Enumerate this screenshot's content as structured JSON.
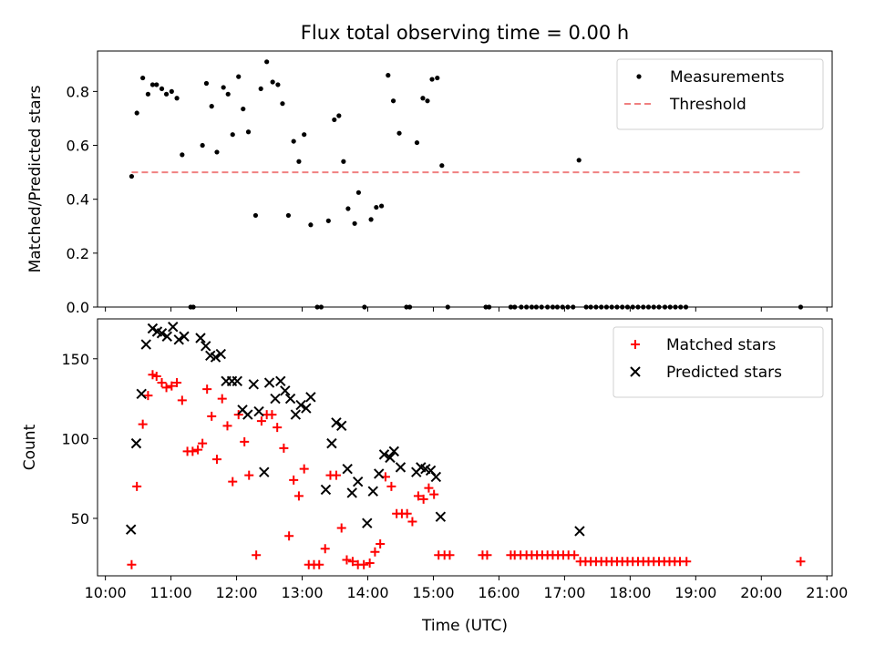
{
  "figure": {
    "title": "Flux total observing time = 0.00 h",
    "xlabel": "Time (UTC)"
  },
  "colors": {
    "measurements": "#000000",
    "threshold": "#f08080",
    "matched": "#ff0000",
    "predicted": "#000000"
  },
  "chart_data": [
    {
      "type": "scatter",
      "ylabel": "Matched/Predicted stars",
      "xlim": [
        9.88,
        21.08
      ],
      "ylim": [
        0,
        0.95
      ],
      "xticks": [
        "10:00",
        "11:00",
        "12:00",
        "13:00",
        "14:00",
        "15:00",
        "16:00",
        "17:00",
        "18:00",
        "19:00",
        "20:00",
        "21:00"
      ],
      "yticks": [
        "0.0",
        "0.2",
        "0.4",
        "0.6",
        "0.8"
      ],
      "legend_position": "top-right",
      "series": [
        {
          "name": "Measurements",
          "marker": "dot",
          "x": [
            10.4,
            10.48,
            10.57,
            10.65,
            10.72,
            10.78,
            10.86,
            10.93,
            11.01,
            11.09,
            11.17,
            11.3,
            11.34,
            11.48,
            11.54,
            11.62,
            11.7,
            11.8,
            11.87,
            11.94,
            12.03,
            12.1,
            12.18,
            12.29,
            12.37,
            12.46,
            12.55,
            12.63,
            12.7,
            12.79,
            12.87,
            12.95,
            13.03,
            13.13,
            13.23,
            13.29,
            13.4,
            13.49,
            13.56,
            13.63,
            13.7,
            13.8,
            13.86,
            13.95,
            14.05,
            14.13,
            14.21,
            14.31,
            14.39,
            14.48,
            14.59,
            14.64,
            14.75,
            14.84,
            14.91,
            14.98,
            15.06,
            15.13,
            15.22,
            15.8,
            15.85,
            16.18,
            16.24,
            16.34,
            16.42,
            16.5,
            16.57,
            16.65,
            16.74,
            16.82,
            16.89,
            16.97,
            17.05,
            17.13,
            17.22,
            17.33,
            17.4,
            17.48,
            17.56,
            17.64,
            17.72,
            17.8,
            17.88,
            17.96,
            18.04,
            18.12,
            18.2,
            18.28,
            18.36,
            18.44,
            18.53,
            18.61,
            18.69,
            18.77,
            18.85,
            20.6
          ],
          "y": [
            0.485,
            0.72,
            0.85,
            0.79,
            0.825,
            0.825,
            0.81,
            0.79,
            0.8,
            0.775,
            0.565,
            0,
            0,
            0.6,
            0.83,
            0.745,
            0.575,
            0.815,
            0.79,
            0.64,
            0.855,
            0.735,
            0.65,
            0.34,
            0.81,
            0.91,
            0.835,
            0.825,
            0.755,
            0.34,
            0.615,
            0.54,
            0.64,
            0.305,
            0,
            0,
            0.32,
            0.695,
            0.71,
            0.54,
            0.365,
            0.31,
            0.425,
            0,
            0.325,
            0.37,
            0.375,
            0.86,
            0.765,
            0.645,
            0,
            0,
            0.61,
            0.775,
            0.765,
            0.845,
            0.85,
            0.525,
            0,
            0,
            0,
            0,
            0,
            0,
            0,
            0,
            0,
            0,
            0,
            0,
            0,
            0,
            0,
            0,
            0.545,
            0,
            0,
            0,
            0,
            0,
            0,
            0,
            0,
            0,
            0,
            0,
            0,
            0,
            0,
            0,
            0,
            0,
            0,
            0,
            0,
            0
          ]
        },
        {
          "name": "Threshold",
          "marker": "dashed-line",
          "x": [
            10.4,
            20.6
          ],
          "y": [
            0.5,
            0.5
          ]
        }
      ]
    },
    {
      "type": "scatter",
      "ylabel": "Count",
      "xlim": [
        9.88,
        21.08
      ],
      "ylim": [
        14,
        175
      ],
      "xticks": [
        "10:00",
        "11:00",
        "12:00",
        "13:00",
        "14:00",
        "15:00",
        "16:00",
        "17:00",
        "18:00",
        "19:00",
        "20:00",
        "21:00"
      ],
      "yticks": [
        "50",
        "100",
        "150"
      ],
      "legend_position": "top-right",
      "series": [
        {
          "name": "Matched stars",
          "marker": "plus",
          "x": [
            10.4,
            10.48,
            10.57,
            10.65,
            10.72,
            10.78,
            10.86,
            10.93,
            11.01,
            11.09,
            11.17,
            11.25,
            11.33,
            11.41,
            11.48,
            11.55,
            11.62,
            11.7,
            11.78,
            11.86,
            11.94,
            12.03,
            12.12,
            12.19,
            12.3,
            12.38,
            12.46,
            12.54,
            12.62,
            12.72,
            12.8,
            12.87,
            12.95,
            13.03,
            13.1,
            13.18,
            13.26,
            13.35,
            13.43,
            13.52,
            13.6,
            13.68,
            13.77,
            13.85,
            13.94,
            14.03,
            14.11,
            14.19,
            14.27,
            14.36,
            14.44,
            14.52,
            14.6,
            14.68,
            14.77,
            14.85,
            14.93,
            15.01,
            15.08,
            15.17,
            15.25,
            15.75,
            15.82,
            16.18,
            16.24,
            16.33,
            16.42,
            16.5,
            16.58,
            16.66,
            16.74,
            16.82,
            16.9,
            16.98,
            17.06,
            17.15,
            17.24,
            17.32,
            17.4,
            17.48,
            17.56,
            17.64,
            17.72,
            17.8,
            17.88,
            17.96,
            18.04,
            18.12,
            18.2,
            18.28,
            18.36,
            18.44,
            18.52,
            18.6,
            18.68,
            18.76,
            18.86,
            20.6
          ],
          "y": [
            21,
            70,
            109,
            127,
            140,
            139,
            135,
            132,
            133,
            135,
            124,
            92,
            92,
            93,
            97,
            131,
            114,
            87,
            125,
            108,
            73,
            115,
            98,
            77,
            27,
            111,
            115,
            115,
            107,
            94,
            39,
            74,
            64,
            81,
            21,
            21,
            21,
            31,
            77,
            77,
            44,
            24,
            23,
            21,
            21,
            22,
            29,
            34,
            76,
            70,
            53,
            53,
            53,
            48,
            64,
            62,
            69,
            65,
            27,
            27,
            27,
            27,
            27,
            27,
            27,
            27,
            27,
            27,
            27,
            27,
            27,
            27,
            27,
            27,
            27,
            27,
            23,
            23,
            23,
            23,
            23,
            23,
            23,
            23,
            23,
            23,
            23,
            23,
            23,
            23,
            23,
            23,
            23,
            23,
            23,
            23,
            23,
            23
          ]
        },
        {
          "name": "Predicted stars",
          "marker": "x",
          "x": [
            10.39,
            10.47,
            10.55,
            10.62,
            10.72,
            10.79,
            10.86,
            10.94,
            11.03,
            11.12,
            11.2,
            11.45,
            11.53,
            11.6,
            11.68,
            11.76,
            11.84,
            11.93,
            12.01,
            12.09,
            12.17,
            12.26,
            12.34,
            12.42,
            12.5,
            12.59,
            12.67,
            12.74,
            12.82,
            12.9,
            12.98,
            13.06,
            13.13,
            13.36,
            13.45,
            13.52,
            13.6,
            13.69,
            13.76,
            13.85,
            13.99,
            14.08,
            14.17,
            14.25,
            14.34,
            14.4,
            14.5,
            14.74,
            14.81,
            14.88,
            14.96,
            15.04,
            15.11,
            17.23
          ],
          "y": [
            43,
            97,
            128,
            159,
            169,
            167,
            166,
            164,
            170,
            162,
            164,
            163,
            158,
            152,
            151,
            153,
            136,
            136,
            136,
            118,
            115,
            134,
            117,
            79,
            135,
            125,
            136,
            130,
            125,
            115,
            121,
            119,
            126,
            68,
            97,
            110,
            108,
            81,
            66,
            73,
            47,
            67,
            78,
            90,
            88,
            92,
            82,
            79,
            82,
            81,
            80,
            76,
            51,
            42
          ]
        }
      ]
    }
  ]
}
